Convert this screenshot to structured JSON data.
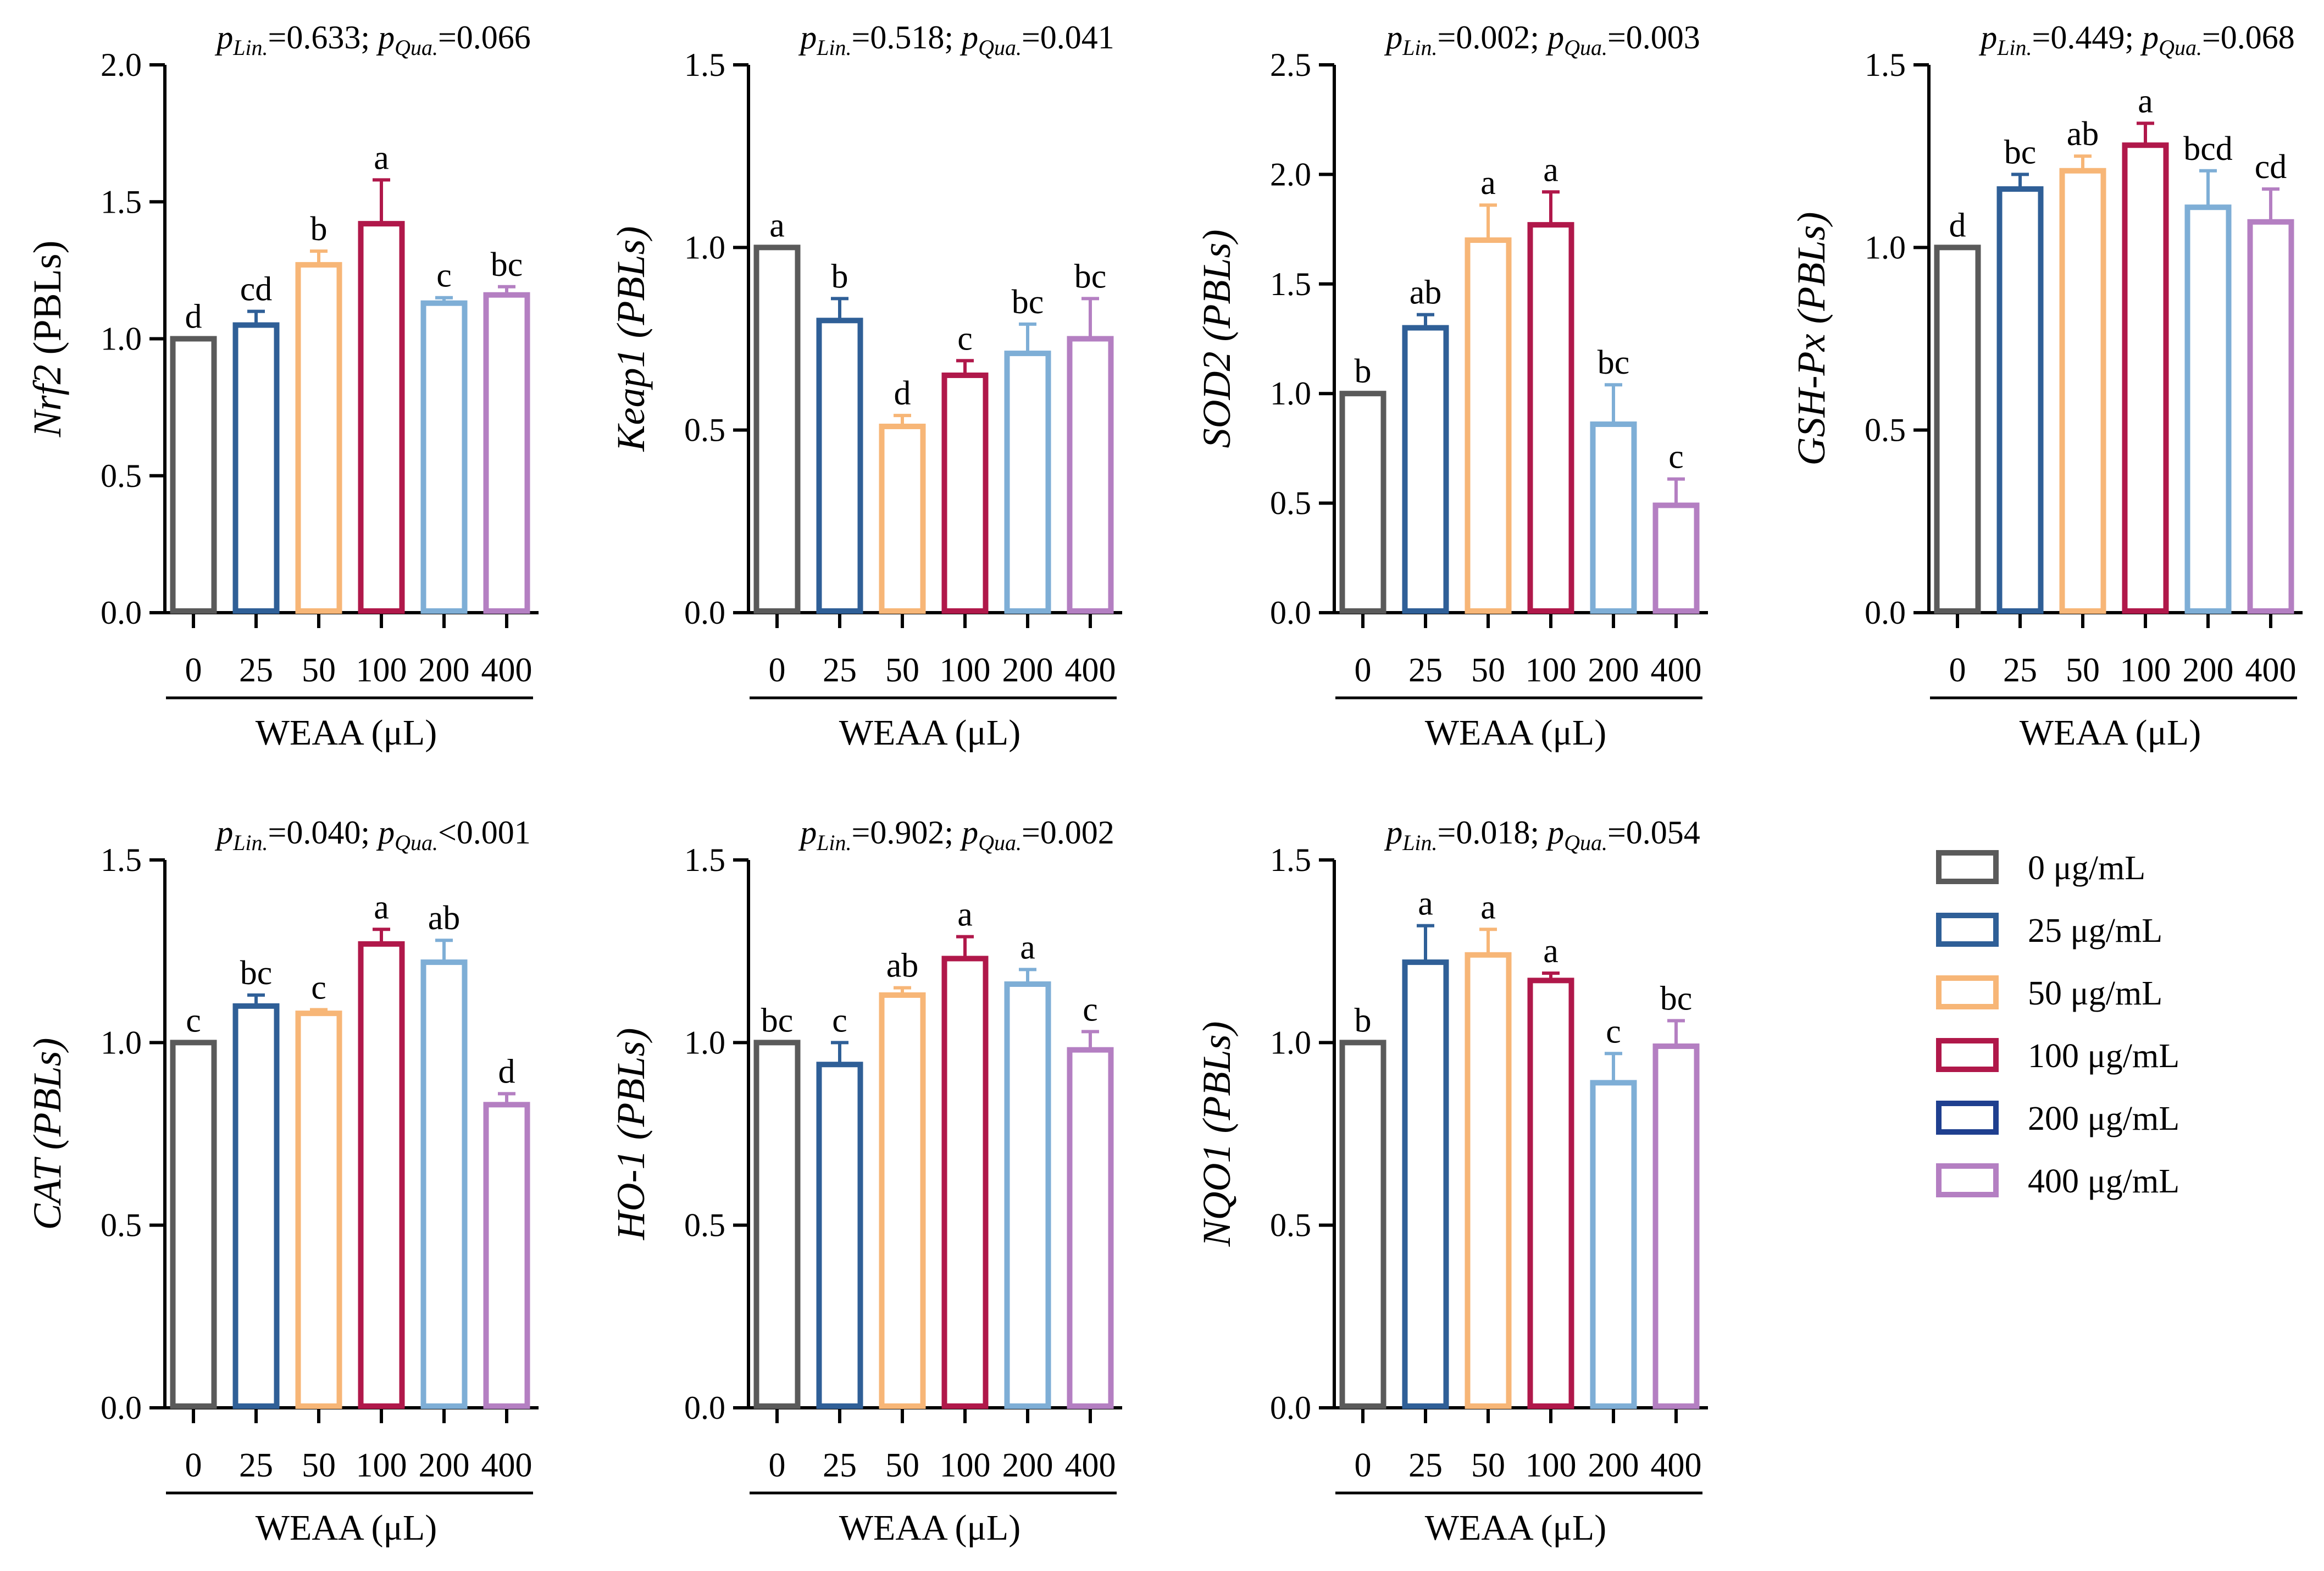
{
  "colors": {
    "c0": "#5a5a5a",
    "c25": "#2f5f97",
    "c50": "#f7b677",
    "c100": "#b0184a",
    "c200": "#7eaed6",
    "c400": "#b47fc2",
    "legend200": "#1f3f8f"
  },
  "chart_data": [
    {
      "type": "bar",
      "title": "",
      "ylabel": "Nrf2",
      "ylabel_suffix": " (PBLs)",
      "ylabel_suffix_italic": false,
      "xlabel": "WEAA (μL)",
      "categories": [
        "0",
        "25",
        "50",
        "100",
        "200",
        "400"
      ],
      "values": [
        1.0,
        1.05,
        1.27,
        1.42,
        1.13,
        1.16
      ],
      "errors": [
        0.0,
        0.05,
        0.05,
        0.16,
        0.02,
        0.03
      ],
      "letters": [
        "d",
        "cd",
        "b",
        "a",
        "c",
        "bc"
      ],
      "ylim": [
        0,
        2.0
      ],
      "yticks": [
        "0.0",
        "0.5",
        "1.0",
        "1.5",
        "2.0"
      ],
      "p_lin": "=0.633; ",
      "p_qua": "=0.066"
    },
    {
      "type": "bar",
      "title": "",
      "ylabel": "Keap1",
      "ylabel_suffix": " (PBLs)",
      "ylabel_suffix_italic": true,
      "xlabel": "WEAA (μL)",
      "categories": [
        "0",
        "25",
        "50",
        "100",
        "200",
        "400"
      ],
      "values": [
        1.0,
        0.8,
        0.51,
        0.65,
        0.71,
        0.75
      ],
      "errors": [
        0.0,
        0.06,
        0.03,
        0.04,
        0.08,
        0.11
      ],
      "letters": [
        "a",
        "b",
        "d",
        "c",
        "bc",
        "bc"
      ],
      "ylim": [
        0,
        1.5
      ],
      "yticks": [
        "0.0",
        "0.5",
        "1.0",
        "1.5"
      ],
      "p_lin": "=0.518; ",
      "p_qua": "=0.041"
    },
    {
      "type": "bar",
      "title": "",
      "ylabel": "SOD2",
      "ylabel_suffix": " (PBLs)",
      "ylabel_suffix_italic": true,
      "xlabel": "WEAA (μL)",
      "categories": [
        "0",
        "25",
        "50",
        "100",
        "200",
        "400"
      ],
      "values": [
        1.0,
        1.3,
        1.7,
        1.77,
        0.86,
        0.49
      ],
      "errors": [
        0.0,
        0.06,
        0.16,
        0.15,
        0.18,
        0.12
      ],
      "letters": [
        "b",
        "ab",
        "a",
        "a",
        "bc",
        "c"
      ],
      "ylim": [
        0,
        2.5
      ],
      "yticks": [
        "0.0",
        "0.5",
        "1.0",
        "1.5",
        "2.0",
        "2.5"
      ],
      "p_lin": "=0.002; ",
      "p_qua": "=0.003"
    },
    {
      "type": "bar",
      "title": "",
      "ylabel": "GSH-Px",
      "ylabel_suffix": " (PBLs)",
      "ylabel_suffix_italic": true,
      "xlabel": "WEAA (μL)",
      "categories": [
        "0",
        "25",
        "50",
        "100",
        "200",
        "400"
      ],
      "values": [
        1.0,
        1.16,
        1.21,
        1.28,
        1.11,
        1.07
      ],
      "errors": [
        0.0,
        0.04,
        0.04,
        0.06,
        0.1,
        0.09
      ],
      "letters": [
        "d",
        "bc",
        "ab",
        "a",
        "bcd",
        "cd"
      ],
      "ylim": [
        0,
        1.5
      ],
      "yticks": [
        "0.0",
        "0.5",
        "1.0",
        "1.5"
      ],
      "p_lin": "=0.449; ",
      "p_qua": "=0.068"
    },
    {
      "type": "bar",
      "title": "",
      "ylabel": "CAT",
      "ylabel_suffix": " (PBLs)",
      "ylabel_suffix_italic": true,
      "xlabel": "WEAA (μL)",
      "categories": [
        "0",
        "25",
        "50",
        "100",
        "200",
        "400"
      ],
      "values": [
        1.0,
        1.1,
        1.08,
        1.27,
        1.22,
        0.83
      ],
      "errors": [
        0.0,
        0.03,
        0.01,
        0.04,
        0.06,
        0.03
      ],
      "letters": [
        "c",
        "bc",
        "c",
        "a",
        "ab",
        "d"
      ],
      "ylim": [
        0,
        1.5
      ],
      "yticks": [
        "0.0",
        "0.5",
        "1.0",
        "1.5"
      ],
      "p_lin": "=0.040; ",
      "p_qua": "<0.001"
    },
    {
      "type": "bar",
      "title": "",
      "ylabel": "HO-1",
      "ylabel_suffix": " (PBLs)",
      "ylabel_suffix_italic": true,
      "xlabel": "WEAA (μL)",
      "categories": [
        "0",
        "25",
        "50",
        "100",
        "200",
        "400"
      ],
      "values": [
        1.0,
        0.94,
        1.13,
        1.23,
        1.16,
        0.98
      ],
      "errors": [
        0.0,
        0.06,
        0.02,
        0.06,
        0.04,
        0.05
      ],
      "letters": [
        "bc",
        "c",
        "ab",
        "a",
        "a",
        "c"
      ],
      "ylim": [
        0,
        1.5
      ],
      "yticks": [
        "0.0",
        "0.5",
        "1.0",
        "1.5"
      ],
      "p_lin": "=0.902; ",
      "p_qua": "=0.002"
    },
    {
      "type": "bar",
      "title": "",
      "ylabel": "NQO1",
      "ylabel_suffix": " (PBLs)",
      "ylabel_suffix_italic": true,
      "xlabel": "WEAA (μL)",
      "categories": [
        "0",
        "25",
        "50",
        "100",
        "200",
        "400"
      ],
      "values": [
        1.0,
        1.22,
        1.24,
        1.17,
        0.89,
        0.99
      ],
      "errors": [
        0.0,
        0.1,
        0.07,
        0.02,
        0.08,
        0.07
      ],
      "letters": [
        "b",
        "a",
        "a",
        "a",
        "c",
        "bc"
      ],
      "ylim": [
        0,
        1.5
      ],
      "yticks": [
        "0.0",
        "0.5",
        "1.0",
        "1.5"
      ],
      "p_lin": "=0.018; ",
      "p_qua": "=0.054"
    }
  ],
  "legend": {
    "items": [
      {
        "label": "0 μg/mL",
        "color_key": "c0"
      },
      {
        "label": "25 μg/mL",
        "color_key": "c25"
      },
      {
        "label": "50 μg/mL",
        "color_key": "c50"
      },
      {
        "label": "100 μg/mL",
        "color_key": "c100"
      },
      {
        "label": "200 μg/mL",
        "color_key": "legend200"
      },
      {
        "label": "400 μg/mL",
        "color_key": "c400"
      }
    ]
  },
  "p_symbols": {
    "p": "p",
    "lin_sub": "Lin.",
    "qua_sub": "Qua."
  }
}
